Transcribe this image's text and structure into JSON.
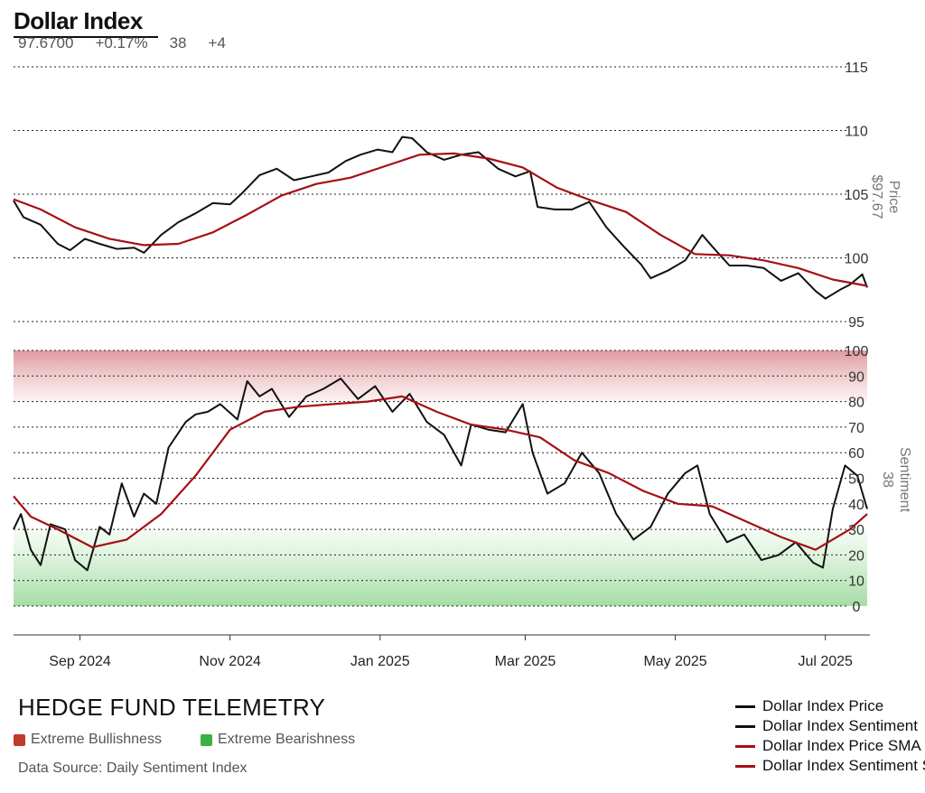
{
  "header": {
    "title": "Dollar Index",
    "stats": [
      "97.6700",
      "+0.17%",
      "38",
      "+4"
    ]
  },
  "colors": {
    "price": "#111111",
    "sma": "#a50f15",
    "bull_zone": "#d98d8d",
    "bear_zone": "#8fd48f",
    "bull_swatch": "#c0392b",
    "bear_swatch": "#3bb143",
    "grid": "#222222"
  },
  "footer": {
    "brand": "HEDGE FUND TELEMETRY",
    "key_bull": "Extreme Bullishness",
    "key_bear": "Extreme Bearishness",
    "source": "Data Source: Daily Sentiment Index"
  },
  "legend": [
    {
      "label": "Dollar Index Price",
      "color": "#111111"
    },
    {
      "label": "Dollar Index Sentiment",
      "color": "#111111"
    },
    {
      "label": "Dollar Index Price SMA",
      "color": "#a50f15"
    },
    {
      "label": "Dollar Index Sentiment SMA",
      "color": "#a50f15"
    }
  ],
  "chart_data": {
    "type": "line",
    "x_ticks": [
      "Sep 2024",
      "Nov 2024",
      "Jan 2025",
      "Mar 2025",
      "May 2025",
      "Jul 2025"
    ],
    "x_tick_dates": [
      "2024-09-01",
      "2024-11-01",
      "2025-01-01",
      "2025-03-01",
      "2025-05-01",
      "2025-07-01"
    ],
    "x_range": [
      "2024-08-05",
      "2025-07-18"
    ],
    "panels": [
      {
        "name": "price",
        "axis_label": "Price",
        "axis_value": "$97.67",
        "ylim": [
          95,
          115
        ],
        "ticks": [
          95,
          100,
          105,
          110,
          115
        ],
        "series": [
          {
            "name": "Dollar Index Price",
            "points": [
              [
                "2024-08-05",
                104.5
              ],
              [
                "2024-08-09",
                103.2
              ],
              [
                "2024-08-16",
                102.6
              ],
              [
                "2024-08-23",
                101.1
              ],
              [
                "2024-08-28",
                100.6
              ],
              [
                "2024-09-03",
                101.5
              ],
              [
                "2024-09-09",
                101.1
              ],
              [
                "2024-09-16",
                100.7
              ],
              [
                "2024-09-23",
                100.8
              ],
              [
                "2024-09-27",
                100.4
              ],
              [
                "2024-10-04",
                101.8
              ],
              [
                "2024-10-11",
                102.8
              ],
              [
                "2024-10-18",
                103.5
              ],
              [
                "2024-10-25",
                104.3
              ],
              [
                "2024-11-01",
                104.2
              ],
              [
                "2024-11-06",
                105.1
              ],
              [
                "2024-11-13",
                106.5
              ],
              [
                "2024-11-20",
                107.0
              ],
              [
                "2024-11-27",
                106.1
              ],
              [
                "2024-12-04",
                106.4
              ],
              [
                "2024-12-11",
                106.7
              ],
              [
                "2024-12-18",
                107.6
              ],
              [
                "2024-12-24",
                108.1
              ],
              [
                "2024-12-31",
                108.5
              ],
              [
                "2025-01-06",
                108.3
              ],
              [
                "2025-01-10",
                109.5
              ],
              [
                "2025-01-14",
                109.4
              ],
              [
                "2025-01-20",
                108.3
              ],
              [
                "2025-01-27",
                107.7
              ],
              [
                "2025-02-03",
                108.1
              ],
              [
                "2025-02-10",
                108.3
              ],
              [
                "2025-02-18",
                107.0
              ],
              [
                "2025-02-25",
                106.4
              ],
              [
                "2025-03-03",
                106.8
              ],
              [
                "2025-03-06",
                104.0
              ],
              [
                "2025-03-13",
                103.8
              ],
              [
                "2025-03-20",
                103.8
              ],
              [
                "2025-03-27",
                104.4
              ],
              [
                "2025-04-03",
                102.4
              ],
              [
                "2025-04-10",
                100.9
              ],
              [
                "2025-04-17",
                99.5
              ],
              [
                "2025-04-21",
                98.4
              ],
              [
                "2025-04-28",
                99.0
              ],
              [
                "2025-05-05",
                99.8
              ],
              [
                "2025-05-12",
                101.8
              ],
              [
                "2025-05-16",
                100.9
              ],
              [
                "2025-05-23",
                99.4
              ],
              [
                "2025-05-30",
                99.4
              ],
              [
                "2025-06-06",
                99.2
              ],
              [
                "2025-06-13",
                98.2
              ],
              [
                "2025-06-20",
                98.8
              ],
              [
                "2025-06-27",
                97.4
              ],
              [
                "2025-07-01",
                96.8
              ],
              [
                "2025-07-07",
                97.5
              ],
              [
                "2025-07-11",
                97.9
              ],
              [
                "2025-07-16",
                98.7
              ],
              [
                "2025-07-18",
                97.67
              ]
            ]
          },
          {
            "name": "Dollar Index Price SMA",
            "points": [
              [
                "2024-08-05",
                104.6
              ],
              [
                "2024-08-16",
                103.8
              ],
              [
                "2024-08-30",
                102.4
              ],
              [
                "2024-09-13",
                101.5
              ],
              [
                "2024-09-27",
                101.0
              ],
              [
                "2024-10-11",
                101.1
              ],
              [
                "2024-10-25",
                102.0
              ],
              [
                "2024-11-08",
                103.4
              ],
              [
                "2024-11-22",
                104.9
              ],
              [
                "2024-12-06",
                105.8
              ],
              [
                "2024-12-20",
                106.3
              ],
              [
                "2025-01-03",
                107.2
              ],
              [
                "2025-01-17",
                108.1
              ],
              [
                "2025-01-31",
                108.2
              ],
              [
                "2025-02-14",
                107.8
              ],
              [
                "2025-02-28",
                107.1
              ],
              [
                "2025-03-14",
                105.5
              ],
              [
                "2025-03-28",
                104.5
              ],
              [
                "2025-04-11",
                103.6
              ],
              [
                "2025-04-25",
                101.8
              ],
              [
                "2025-05-09",
                100.3
              ],
              [
                "2025-05-23",
                100.2
              ],
              [
                "2025-06-06",
                99.8
              ],
              [
                "2025-06-20",
                99.2
              ],
              [
                "2025-07-04",
                98.3
              ],
              [
                "2025-07-18",
                97.8
              ]
            ]
          }
        ]
      },
      {
        "name": "sentiment",
        "axis_label": "Sentiment",
        "axis_value": "38",
        "ylim": [
          0,
          100
        ],
        "ticks": [
          0,
          10,
          20,
          30,
          40,
          50,
          60,
          70,
          80,
          90,
          100
        ],
        "zones": [
          {
            "type": "Extreme Bullishness",
            "from": 80,
            "to": 100
          },
          {
            "type": "Extreme Bearishness",
            "from": 0,
            "to": 30
          }
        ],
        "series": [
          {
            "name": "Dollar Index Sentiment",
            "points": [
              [
                "2024-08-05",
                30
              ],
              [
                "2024-08-08",
                36
              ],
              [
                "2024-08-12",
                22
              ],
              [
                "2024-08-16",
                16
              ],
              [
                "2024-08-20",
                32
              ],
              [
                "2024-08-26",
                30
              ],
              [
                "2024-08-30",
                18
              ],
              [
                "2024-09-04",
                14
              ],
              [
                "2024-09-09",
                31
              ],
              [
                "2024-09-13",
                28
              ],
              [
                "2024-09-18",
                48
              ],
              [
                "2024-09-23",
                35
              ],
              [
                "2024-09-27",
                44
              ],
              [
                "2024-10-02",
                40
              ],
              [
                "2024-10-07",
                62
              ],
              [
                "2024-10-14",
                72
              ],
              [
                "2024-10-18",
                75
              ],
              [
                "2024-10-23",
                76
              ],
              [
                "2024-10-28",
                79
              ],
              [
                "2024-11-04",
                73
              ],
              [
                "2024-11-08",
                88
              ],
              [
                "2024-11-13",
                82
              ],
              [
                "2024-11-18",
                85
              ],
              [
                "2024-11-25",
                74
              ],
              [
                "2024-12-02",
                82
              ],
              [
                "2024-12-09",
                85
              ],
              [
                "2024-12-16",
                89
              ],
              [
                "2024-12-23",
                81
              ],
              [
                "2024-12-30",
                86
              ],
              [
                "2025-01-06",
                76
              ],
              [
                "2025-01-13",
                83
              ],
              [
                "2025-01-20",
                72
              ],
              [
                "2025-01-27",
                67
              ],
              [
                "2025-02-03",
                55
              ],
              [
                "2025-02-07",
                71
              ],
              [
                "2025-02-14",
                69
              ],
              [
                "2025-02-21",
                68
              ],
              [
                "2025-02-28",
                79
              ],
              [
                "2025-03-04",
                60
              ],
              [
                "2025-03-10",
                44
              ],
              [
                "2025-03-17",
                48
              ],
              [
                "2025-03-24",
                60
              ],
              [
                "2025-03-31",
                52
              ],
              [
                "2025-04-07",
                36
              ],
              [
                "2025-04-14",
                26
              ],
              [
                "2025-04-21",
                31
              ],
              [
                "2025-04-28",
                44
              ],
              [
                "2025-05-05",
                52
              ],
              [
                "2025-05-10",
                55
              ],
              [
                "2025-05-15",
                36
              ],
              [
                "2025-05-22",
                25
              ],
              [
                "2025-05-29",
                28
              ],
              [
                "2025-06-05",
                18
              ],
              [
                "2025-06-12",
                20
              ],
              [
                "2025-06-19",
                25
              ],
              [
                "2025-06-26",
                17
              ],
              [
                "2025-06-30",
                15
              ],
              [
                "2025-07-04",
                38
              ],
              [
                "2025-07-09",
                55
              ],
              [
                "2025-07-14",
                51
              ],
              [
                "2025-07-18",
                38
              ]
            ]
          },
          {
            "name": "Dollar Index Sentiment SMA",
            "points": [
              [
                "2024-08-05",
                43
              ],
              [
                "2024-08-12",
                35
              ],
              [
                "2024-08-23",
                30
              ],
              [
                "2024-09-06",
                23
              ],
              [
                "2024-09-20",
                26
              ],
              [
                "2024-10-04",
                36
              ],
              [
                "2024-10-18",
                51
              ],
              [
                "2024-11-01",
                69
              ],
              [
                "2024-11-15",
                76
              ],
              [
                "2024-11-29",
                78
              ],
              [
                "2024-12-13",
                79
              ],
              [
                "2024-12-27",
                80
              ],
              [
                "2025-01-10",
                82
              ],
              [
                "2025-01-24",
                76
              ],
              [
                "2025-02-07",
                71
              ],
              [
                "2025-02-21",
                69
              ],
              [
                "2025-03-07",
                66
              ],
              [
                "2025-03-21",
                57
              ],
              [
                "2025-04-04",
                52
              ],
              [
                "2025-04-18",
                45
              ],
              [
                "2025-05-02",
                40
              ],
              [
                "2025-05-16",
                39
              ],
              [
                "2025-05-30",
                33
              ],
              [
                "2025-06-13",
                27
              ],
              [
                "2025-06-27",
                22
              ],
              [
                "2025-07-11",
                30
              ],
              [
                "2025-07-18",
                36
              ]
            ]
          }
        ]
      }
    ]
  }
}
